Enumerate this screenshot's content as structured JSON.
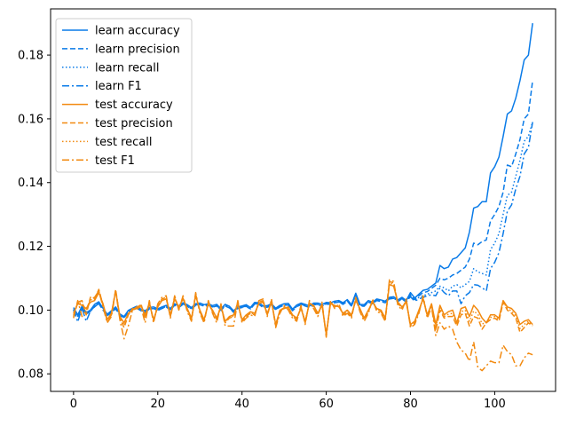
{
  "chart_data": {
    "type": "line",
    "title": "",
    "xlabel": "",
    "ylabel": "",
    "xlim": [
      -5.45,
      114.45
    ],
    "ylim": [
      0.0745,
      0.1945
    ],
    "xticks": [
      0,
      20,
      40,
      60,
      80,
      100
    ],
    "yticks": [
      0.08,
      0.1,
      0.12,
      0.14,
      0.16,
      0.18
    ],
    "ytick_labels": [
      "0.08",
      "0.10",
      "0.12",
      "0.14",
      "0.16",
      "0.18"
    ],
    "grid": false,
    "legend_position": "top-left",
    "colors": {
      "learn": "#1f77b4",
      "test": "#ff7f0e",
      "learn_actual": "#0a7be8",
      "test_actual": "#f28a10"
    },
    "x": [
      0,
      1,
      2,
      3,
      4,
      5,
      6,
      7,
      8,
      9,
      10,
      11,
      12,
      13,
      14,
      15,
      16,
      17,
      18,
      19,
      20,
      21,
      22,
      23,
      24,
      25,
      26,
      27,
      28,
      29,
      30,
      31,
      32,
      33,
      34,
      35,
      36,
      37,
      38,
      39,
      40,
      41,
      42,
      43,
      44,
      45,
      46,
      47,
      48,
      49,
      50,
      51,
      52,
      53,
      54,
      55,
      56,
      57,
      58,
      59,
      60,
      61,
      62,
      63,
      64,
      65,
      66,
      67,
      68,
      69,
      70,
      71,
      72,
      73,
      74,
      75,
      76,
      77,
      78,
      79,
      80,
      81,
      82,
      83,
      84,
      85,
      86,
      87,
      88,
      89,
      90,
      91,
      92,
      93,
      94,
      95,
      96,
      97,
      98,
      99,
      100,
      101,
      102,
      103,
      104,
      105,
      106,
      107,
      108,
      109
    ],
    "series": [
      {
        "name": "learn accuracy",
        "group": "learn",
        "dash": "solid",
        "values": [
          0.1008,
          0.0985,
          0.1012,
          0.0992,
          0.1,
          0.1018,
          0.1026,
          0.1006,
          0.0987,
          0.0998,
          0.101,
          0.0988,
          0.098,
          0.0999,
          0.1006,
          0.1012,
          0.1003,
          0.0998,
          0.1008,
          0.101,
          0.1004,
          0.101,
          0.1015,
          0.1005,
          0.102,
          0.1013,
          0.1023,
          0.1017,
          0.1008,
          0.102,
          0.1022,
          0.1017,
          0.102,
          0.1014,
          0.1018,
          0.1004,
          0.1018,
          0.1012,
          0.0998,
          0.101,
          0.1013,
          0.1017,
          0.1008,
          0.1024,
          0.1023,
          0.1013,
          0.1014,
          0.102,
          0.1006,
          0.1015,
          0.102,
          0.1021,
          0.1003,
          0.1016,
          0.1022,
          0.1018,
          0.1013,
          0.1022,
          0.1022,
          0.1018,
          0.1024,
          0.1023,
          0.1028,
          0.103,
          0.1023,
          0.1033,
          0.1017,
          0.1053,
          0.1018,
          0.1017,
          0.103,
          0.1025,
          0.1035,
          0.1032,
          0.1028,
          0.104,
          0.1042,
          0.1032,
          0.104,
          0.103,
          0.1055,
          0.1038,
          0.105,
          0.1062,
          0.1065,
          0.1075,
          0.1085,
          0.114,
          0.113,
          0.1135,
          0.116,
          0.1165,
          0.118,
          0.1195,
          0.1245,
          0.132,
          0.1325,
          0.134,
          0.134,
          0.143,
          0.145,
          0.148,
          0.1545,
          0.1615,
          0.1625,
          0.1665,
          0.172,
          0.1785,
          0.18,
          0.19
        ]
      },
      {
        "name": "learn precision",
        "group": "learn",
        "dash": "dashed",
        "values": [
          0.0998,
          0.0978,
          0.1005,
          0.0988,
          0.0995,
          0.1012,
          0.102,
          0.1,
          0.0982,
          0.0993,
          0.1004,
          0.0983,
          0.0976,
          0.0994,
          0.1001,
          0.1006,
          0.0998,
          0.0993,
          0.1003,
          0.1005,
          0.0999,
          0.1005,
          0.101,
          0.1,
          0.1015,
          0.1008,
          0.1018,
          0.1012,
          0.1003,
          0.1015,
          0.1017,
          0.1012,
          0.1015,
          0.1009,
          0.1013,
          0.0999,
          0.1013,
          0.1007,
          0.0993,
          0.1005,
          0.1008,
          0.1012,
          0.1003,
          0.1019,
          0.1018,
          0.1008,
          0.1009,
          0.1015,
          0.1001,
          0.101,
          0.1015,
          0.1016,
          0.0998,
          0.1011,
          0.1017,
          0.1013,
          0.1008,
          0.1017,
          0.1017,
          0.1013,
          0.1019,
          0.1018,
          0.1023,
          0.1025,
          0.1018,
          0.1028,
          0.1012,
          0.1048,
          0.1013,
          0.1012,
          0.1025,
          0.102,
          0.103,
          0.1027,
          0.1023,
          0.1035,
          0.1037,
          0.1027,
          0.1035,
          0.1025,
          0.1048,
          0.1033,
          0.1045,
          0.1055,
          0.1058,
          0.1068,
          0.1078,
          0.11,
          0.1095,
          0.11,
          0.111,
          0.1115,
          0.1125,
          0.1135,
          0.116,
          0.121,
          0.1205,
          0.1215,
          0.122,
          0.128,
          0.13,
          0.1325,
          0.137,
          0.1455,
          0.145,
          0.149,
          0.1535,
          0.16,
          0.1615,
          0.172
        ]
      },
      {
        "name": "learn recall",
        "group": "learn",
        "dash": "dotted",
        "values": [
          0.1003,
          0.0981,
          0.1008,
          0.099,
          0.0997,
          0.1015,
          0.1023,
          0.1003,
          0.0984,
          0.0995,
          0.1007,
          0.0985,
          0.0978,
          0.0996,
          0.1003,
          0.1009,
          0.1,
          0.0995,
          0.1005,
          0.1007,
          0.1001,
          0.1007,
          0.1012,
          0.1002,
          0.1017,
          0.101,
          0.102,
          0.1014,
          0.1005,
          0.1017,
          0.1019,
          0.1014,
          0.1017,
          0.1011,
          0.1015,
          0.1001,
          0.1015,
          0.1009,
          0.0995,
          0.1007,
          0.101,
          0.1014,
          0.1005,
          0.1021,
          0.102,
          0.101,
          0.1011,
          0.1017,
          0.1003,
          0.1012,
          0.1017,
          0.1018,
          0.1,
          0.1013,
          0.1019,
          0.1015,
          0.101,
          0.1019,
          0.1019,
          0.1015,
          0.1021,
          0.102,
          0.1025,
          0.1027,
          0.102,
          0.103,
          0.1014,
          0.105,
          0.1015,
          0.1014,
          0.1027,
          0.1022,
          0.1032,
          0.1029,
          0.1025,
          0.1037,
          0.1039,
          0.1029,
          0.1037,
          0.1027,
          0.1045,
          0.103,
          0.104,
          0.1045,
          0.105,
          0.1055,
          0.106,
          0.1075,
          0.107,
          0.106,
          0.1075,
          0.108,
          0.107,
          0.108,
          0.109,
          0.113,
          0.112,
          0.1115,
          0.111,
          0.119,
          0.121,
          0.124,
          0.13,
          0.136,
          0.137,
          0.142,
          0.147,
          0.153,
          0.1545,
          0.159
        ]
      },
      {
        "name": "learn F1",
        "group": "learn",
        "dash": "dashdot",
        "values": [
          0.1001,
          0.0963,
          0.1006,
          0.0965,
          0.0996,
          0.101,
          0.1021,
          0.1001,
          0.0983,
          0.0994,
          0.1005,
          0.0984,
          0.0977,
          0.0995,
          0.1002,
          0.1007,
          0.0999,
          0.0994,
          0.1004,
          0.1006,
          0.1,
          0.1006,
          0.1011,
          0.1001,
          0.1016,
          0.1009,
          0.1019,
          0.1013,
          0.1004,
          0.1016,
          0.1018,
          0.1013,
          0.1016,
          0.101,
          0.1014,
          0.1,
          0.1014,
          0.1008,
          0.0994,
          0.1006,
          0.1009,
          0.1013,
          0.1004,
          0.102,
          0.1019,
          0.1009,
          0.101,
          0.1016,
          0.1002,
          0.1011,
          0.1016,
          0.1017,
          0.0999,
          0.1012,
          0.1018,
          0.1014,
          0.1009,
          0.1018,
          0.1018,
          0.1014,
          0.102,
          0.1019,
          0.1024,
          0.1026,
          0.1019,
          0.1029,
          0.1013,
          0.1049,
          0.1014,
          0.1013,
          0.1026,
          0.1021,
          0.1031,
          0.1028,
          0.1024,
          0.1036,
          0.1038,
          0.1028,
          0.1036,
          0.1026,
          0.1042,
          0.1028,
          0.1035,
          0.104,
          0.1045,
          0.1048,
          0.1045,
          0.107,
          0.1055,
          0.1045,
          0.106,
          0.106,
          0.102,
          0.1045,
          0.1055,
          0.108,
          0.1078,
          0.107,
          0.106,
          0.113,
          0.115,
          0.118,
          0.124,
          0.131,
          0.133,
          0.138,
          0.142,
          0.149,
          0.151,
          0.159
        ]
      },
      {
        "name": "test accuracy",
        "group": "test",
        "dash": "solid",
        "values": [
          0.099,
          0.102,
          0.1015,
          0.1005,
          0.1025,
          0.103,
          0.1055,
          0.102,
          0.097,
          0.099,
          0.106,
          0.098,
          0.096,
          0.099,
          0.1,
          0.101,
          0.1015,
          0.0985,
          0.102,
          0.097,
          0.101,
          0.103,
          0.1035,
          0.0985,
          0.1035,
          0.101,
          0.1035,
          0.1005,
          0.0975,
          0.1045,
          0.1,
          0.097,
          0.102,
          0.1,
          0.0975,
          0.101,
          0.0965,
          0.098,
          0.0985,
          0.102,
          0.097,
          0.0985,
          0.0995,
          0.099,
          0.102,
          0.1025,
          0.099,
          0.1025,
          0.0955,
          0.1,
          0.1005,
          0.101,
          0.0985,
          0.0975,
          0.1005,
          0.0965,
          0.102,
          0.1015,
          0.099,
          0.1015,
          0.0925,
          0.102,
          0.1015,
          0.101,
          0.099,
          0.1,
          0.0985,
          0.103,
          0.1005,
          0.0975,
          0.1,
          0.1025,
          0.1005,
          0.1,
          0.0975,
          0.108,
          0.1075,
          0.1025,
          0.101,
          0.1025,
          0.0955,
          0.0965,
          0.1,
          0.1035,
          0.0985,
          0.102,
          0.0955,
          0.1015,
          0.0985,
          0.0995,
          0.1,
          0.096,
          0.1005,
          0.101,
          0.098,
          0.1015,
          0.1,
          0.0975,
          0.096,
          0.0985,
          0.0985,
          0.0975,
          0.103,
          0.101,
          0.1005,
          0.099,
          0.0955,
          0.0965,
          0.097,
          0.0955
        ]
      },
      {
        "name": "test precision",
        "group": "test",
        "dash": "dashed",
        "values": [
          0.098,
          0.1025,
          0.103,
          0.0985,
          0.104,
          0.1035,
          0.1065,
          0.1015,
          0.0965,
          0.0985,
          0.1065,
          0.0975,
          0.0945,
          0.0985,
          0.1005,
          0.1,
          0.102,
          0.0975,
          0.1025,
          0.0965,
          0.1015,
          0.1035,
          0.104,
          0.098,
          0.104,
          0.1005,
          0.104,
          0.1,
          0.097,
          0.105,
          0.0995,
          0.0965,
          0.1025,
          0.0995,
          0.097,
          0.1015,
          0.096,
          0.0975,
          0.098,
          0.1025,
          0.0965,
          0.098,
          0.099,
          0.0985,
          0.1025,
          0.103,
          0.0985,
          0.103,
          0.095,
          0.0995,
          0.101,
          0.1005,
          0.098,
          0.097,
          0.101,
          0.096,
          0.1025,
          0.101,
          0.0985,
          0.102,
          0.092,
          0.1025,
          0.101,
          0.1015,
          0.0985,
          0.0995,
          0.098,
          0.1035,
          0.1,
          0.097,
          0.0995,
          0.103,
          0.1,
          0.0995,
          0.097,
          0.109,
          0.1085,
          0.102,
          0.1005,
          0.103,
          0.095,
          0.096,
          0.0995,
          0.104,
          0.098,
          0.1015,
          0.0935,
          0.1,
          0.0975,
          0.098,
          0.098,
          0.095,
          0.0985,
          0.099,
          0.095,
          0.098,
          0.0975,
          0.094,
          0.096,
          0.097,
          0.0975,
          0.0965,
          0.1025,
          0.1,
          0.099,
          0.0975,
          0.093,
          0.0945,
          0.096,
          0.095
        ]
      },
      {
        "name": "test recall",
        "group": "test",
        "dash": "dotted",
        "values": [
          0.0985,
          0.1022,
          0.1022,
          0.0995,
          0.1032,
          0.1032,
          0.106,
          0.1017,
          0.0967,
          0.0987,
          0.1062,
          0.0977,
          0.0952,
          0.0987,
          0.1002,
          0.1005,
          0.1017,
          0.098,
          0.1022,
          0.0967,
          0.1012,
          0.1032,
          0.1037,
          0.0982,
          0.1037,
          0.1007,
          0.1037,
          0.1002,
          0.0972,
          0.1047,
          0.0997,
          0.0967,
          0.1022,
          0.0997,
          0.0972,
          0.1012,
          0.0962,
          0.0977,
          0.0982,
          0.1022,
          0.0967,
          0.0982,
          0.0992,
          0.0987,
          0.1022,
          0.1027,
          0.0987,
          0.1027,
          0.0952,
          0.0997,
          0.1007,
          0.1007,
          0.0982,
          0.0972,
          0.1007,
          0.0962,
          0.1022,
          0.1012,
          0.0987,
          0.1017,
          0.0922,
          0.1022,
          0.1012,
          0.1012,
          0.0987,
          0.0997,
          0.0982,
          0.1032,
          0.1002,
          0.0972,
          0.0997,
          0.1027,
          0.1002,
          0.0997,
          0.0972,
          0.1085,
          0.108,
          0.1022,
          0.1007,
          0.1027,
          0.0952,
          0.0962,
          0.0997,
          0.1037,
          0.0982,
          0.1017,
          0.0945,
          0.1007,
          0.098,
          0.0987,
          0.099,
          0.0955,
          0.0995,
          0.1,
          0.0965,
          0.0997,
          0.0987,
          0.0957,
          0.096,
          0.0977,
          0.098,
          0.097,
          0.1027,
          0.1005,
          0.0997,
          0.0982,
          0.0942,
          0.0955,
          0.0965,
          0.0952
        ]
      },
      {
        "name": "test F1",
        "group": "test",
        "dash": "dashdot",
        "values": [
          0.0975,
          0.103,
          0.098,
          0.1,
          0.1035,
          0.104,
          0.106,
          0.101,
          0.096,
          0.098,
          0.106,
          0.097,
          0.091,
          0.095,
          0.1,
          0.1005,
          0.101,
          0.096,
          0.103,
          0.096,
          0.102,
          0.104,
          0.1045,
          0.0975,
          0.1045,
          0.1,
          0.1045,
          0.0995,
          0.0965,
          0.1055,
          0.099,
          0.096,
          0.103,
          0.099,
          0.096,
          0.102,
          0.095,
          0.095,
          0.095,
          0.103,
          0.096,
          0.0975,
          0.0985,
          0.098,
          0.103,
          0.1035,
          0.098,
          0.1035,
          0.0945,
          0.099,
          0.1015,
          0.1,
          0.0975,
          0.0965,
          0.1015,
          0.0955,
          0.103,
          0.1005,
          0.098,
          0.1025,
          0.0915,
          0.103,
          0.1005,
          0.102,
          0.098,
          0.099,
          0.0975,
          0.104,
          0.0995,
          0.0965,
          0.099,
          0.1035,
          0.0995,
          0.099,
          0.0965,
          0.1095,
          0.109,
          0.1015,
          0.1,
          0.1035,
          0.0945,
          0.0955,
          0.099,
          0.1045,
          0.0975,
          0.101,
          0.092,
          0.096,
          0.094,
          0.095,
          0.094,
          0.09,
          0.0875,
          0.0865,
          0.084,
          0.09,
          0.082,
          0.081,
          0.0825,
          0.084,
          0.0835,
          0.0835,
          0.089,
          0.087,
          0.086,
          0.0825,
          0.0825,
          0.085,
          0.0865,
          0.086
        ]
      }
    ]
  }
}
